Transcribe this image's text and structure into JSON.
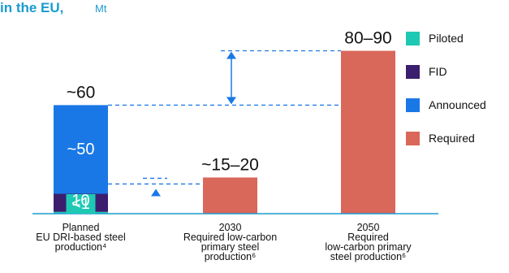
{
  "title": "in the EU,",
  "unit": "Mt",
  "colors": {
    "title": "#1b9bd1",
    "piloted": "#1ec9b4",
    "fid": "#3c1e6e",
    "announced": "#1a78e6",
    "required": "#d9675a",
    "arrow": "#1a78e6",
    "axis": "#1b9bd1",
    "text": "#111111"
  },
  "chart_data": {
    "type": "bar",
    "stacked": true,
    "ylim": [
      0,
      95
    ],
    "categories": [
      [
        "Planned",
        "EU DRI-based steel",
        "production⁴"
      ],
      [
        "2030",
        "Required low-carbon",
        "primary steel",
        "production⁶"
      ],
      [
        "2050",
        "Required",
        "low-carbon primary",
        "steel production⁶"
      ]
    ],
    "series": [
      {
        "name": "Piloted",
        "key": "piloted",
        "values": [
          1,
          0,
          0
        ]
      },
      {
        "name": "FID",
        "key": "fid",
        "values": [
          10,
          0,
          0
        ]
      },
      {
        "name": "Announced",
        "key": "announced",
        "values": [
          49,
          0,
          0
        ]
      },
      {
        "name": "Required",
        "key": "required",
        "values": [
          0,
          20,
          90
        ]
      }
    ],
    "segment_labels": [
      {
        "bar": 0,
        "series": "piloted",
        "text": "<1"
      },
      {
        "bar": 0,
        "series": "fid",
        "text": "10"
      },
      {
        "bar": 0,
        "series": "announced",
        "text": "~50"
      }
    ],
    "total_labels": [
      "~60",
      "~15–20",
      "80–90"
    ],
    "legend": [
      "Piloted",
      "FID",
      "Announced",
      "Required"
    ],
    "legend_position": "right",
    "gaps": [
      {
        "from_value": 60,
        "to_value": 90,
        "direction": "up"
      },
      {
        "from_value": 11,
        "to_value": 20,
        "direction": "up"
      }
    ]
  }
}
